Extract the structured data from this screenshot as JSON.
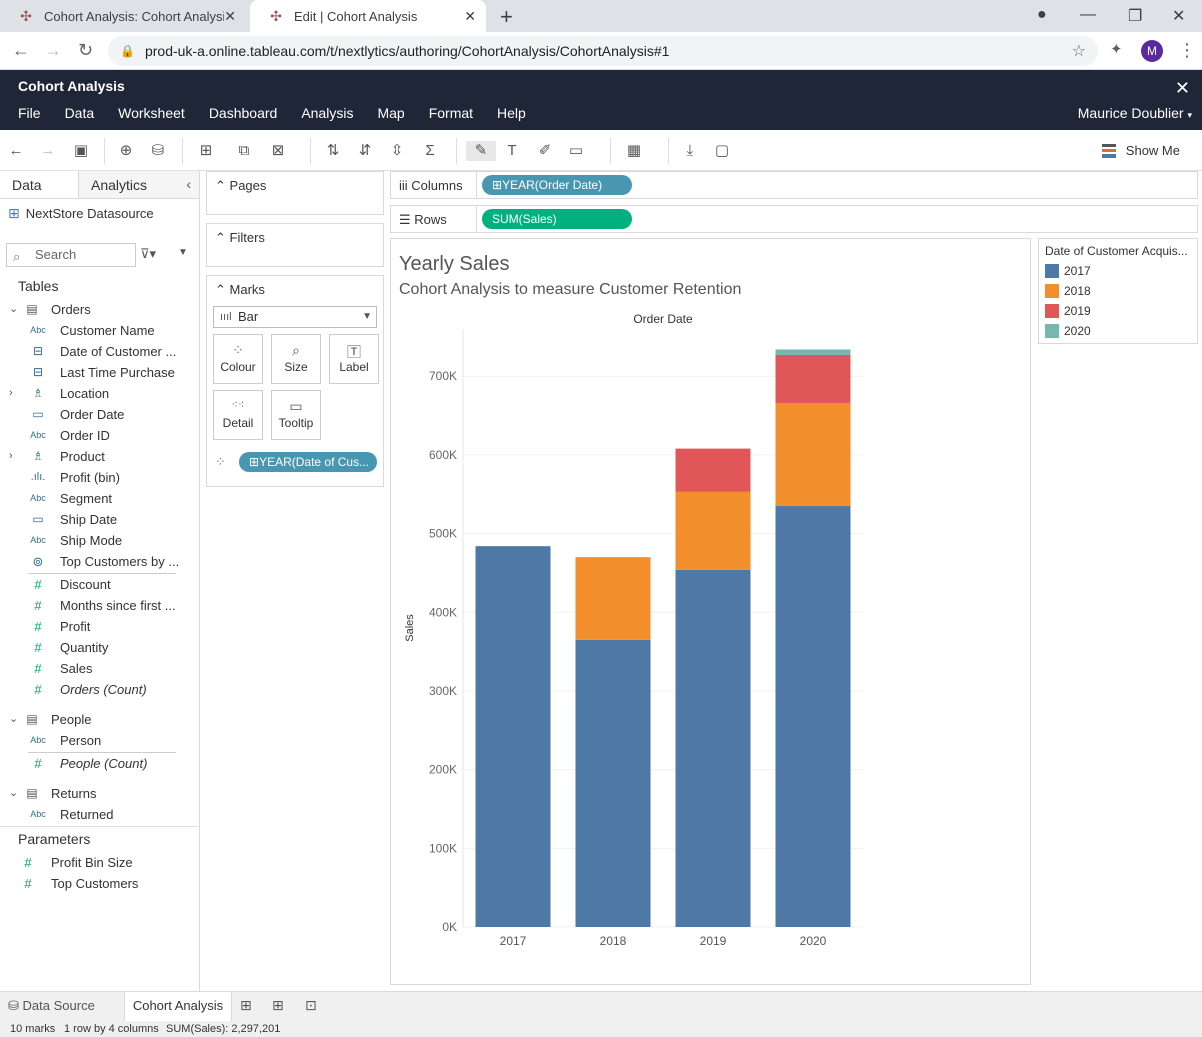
{
  "browser": {
    "tabs": [
      {
        "title": "Cohort Analysis: Cohort Analysis",
        "active": false
      },
      {
        "title": "Edit | Cohort Analysis",
        "active": true
      }
    ],
    "url": "prod-uk-a.online.tableau.com/t/nextlytics/authoring/CohortAnalysis/CohortAnalysis#1",
    "avatar_initial": "M"
  },
  "app": {
    "title": "Cohort Analysis",
    "menu": [
      "File",
      "Data",
      "Worksheet",
      "Dashboard",
      "Analysis",
      "Map",
      "Format",
      "Help"
    ],
    "user": "Maurice Doublier"
  },
  "toolbar": {
    "show_me": "Show Me"
  },
  "datapane": {
    "tab_data": "Data",
    "tab_analytics": "Analytics",
    "datasource": "NextStore Datasource",
    "search_placeholder": "Search",
    "tables_header": "Tables",
    "orders": {
      "name": "Orders",
      "fields": [
        {
          "type": "Abc",
          "name": "Customer Name"
        },
        {
          "type": "date",
          "name": "Date of Customer ..."
        },
        {
          "type": "date",
          "name": "Last Time Purchase"
        },
        {
          "type": "geo",
          "name": "Location",
          "expand": true
        },
        {
          "type": "cal",
          "name": "Order Date"
        },
        {
          "type": "Abc",
          "name": "Order ID"
        },
        {
          "type": "geo",
          "name": "Product",
          "expand": true
        },
        {
          "type": "bin",
          "name": "Profit (bin)"
        },
        {
          "type": "Abc",
          "name": "Segment"
        },
        {
          "type": "cal",
          "name": "Ship Date"
        },
        {
          "type": "Abc",
          "name": "Ship Mode"
        },
        {
          "type": "set",
          "name": "Top Customers by ..."
        }
      ],
      "measures": [
        {
          "name": "Discount",
          "italic": false
        },
        {
          "name": "Months since first ...",
          "italic": false
        },
        {
          "name": "Profit",
          "italic": false
        },
        {
          "name": "Quantity",
          "italic": false
        },
        {
          "name": "Sales",
          "italic": false
        },
        {
          "name": "Orders (Count)",
          "italic": true
        }
      ]
    },
    "people": {
      "name": "People",
      "dim": "Person",
      "measure": "People (Count)"
    },
    "returns": {
      "name": "Returns",
      "dim": "Returned"
    },
    "parameters_header": "Parameters",
    "parameters": [
      "Profit Bin Size",
      "Top Customers"
    ]
  },
  "cards": {
    "pages": "Pages",
    "filters": "Filters",
    "marks": "Marks",
    "mark_type": "Bar",
    "buttons": [
      "Colour",
      "Size",
      "Label",
      "Detail",
      "Tooltip"
    ],
    "color_pill": "YEAR(Date of Cus..."
  },
  "shelves": {
    "columns_label": "Columns",
    "columns_pill": "YEAR(Order Date)",
    "rows_label": "Rows",
    "rows_pill": "SUM(Sales)"
  },
  "viz": {
    "title": "Yearly Sales",
    "subtitle": "Cohort Analysis to measure Customer Retention"
  },
  "chart_data": {
    "type": "bar",
    "stacked": true,
    "title": "Yearly Sales",
    "subtitle": "Cohort Analysis to measure Customer Retention",
    "top_label": "Order Date",
    "xlabel": "",
    "ylabel": "Sales",
    "categories": [
      "2017",
      "2018",
      "2019",
      "2020"
    ],
    "ylim": [
      0,
      760000
    ],
    "yticks": [
      0,
      100000,
      200000,
      300000,
      400000,
      500000,
      600000,
      700000
    ],
    "ytick_labels": [
      "0K",
      "100K",
      "200K",
      "300K",
      "400K",
      "500K",
      "600K",
      "700K"
    ],
    "series": [
      {
        "name": "2017",
        "color": "#4e79a7",
        "values": [
          484000,
          365000,
          454000,
          535000
        ]
      },
      {
        "name": "2018",
        "color": "#f28e2b",
        "values": [
          0,
          105000,
          99000,
          131000
        ]
      },
      {
        "name": "2019",
        "color": "#e15759",
        "values": [
          0,
          0,
          55000,
          61000
        ]
      },
      {
        "name": "2020",
        "color": "#76b7b2",
        "values": [
          0,
          0,
          0,
          7000
        ]
      }
    ],
    "legend": {
      "title": "Date of Customer Acquis...",
      "position": "right"
    }
  },
  "status": {
    "marks": "10 marks",
    "rows": "1 row by 4 columns",
    "sum": "SUM(Sales): 2,297,201"
  },
  "sheets": {
    "data_source": "Data Source",
    "active": "Cohort Analysis"
  }
}
